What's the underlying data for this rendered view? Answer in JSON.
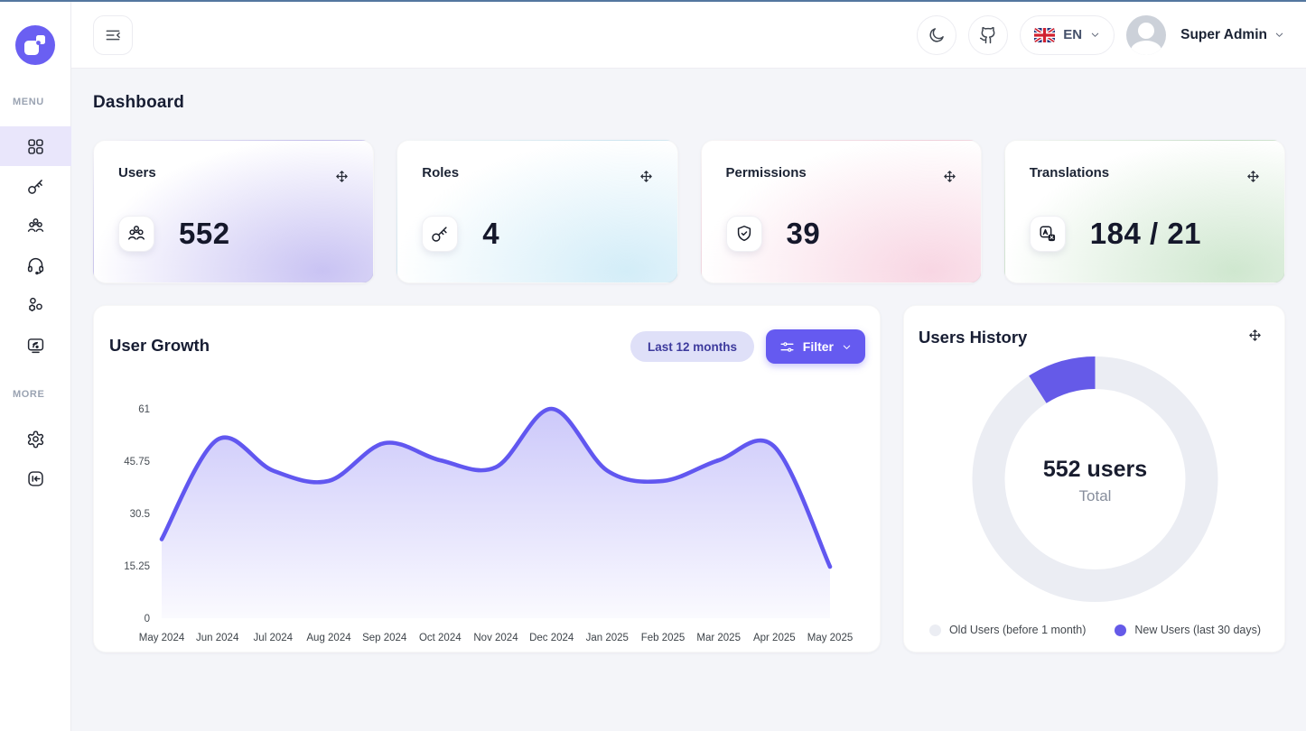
{
  "header": {
    "user_name": "Super Admin",
    "language": "EN"
  },
  "sidebar": {
    "menu_label": "MENU",
    "more_label": "MORE",
    "items": [
      {
        "icon": "grid-dashboard-icon",
        "active": true
      },
      {
        "icon": "key-icon",
        "active": false
      },
      {
        "icon": "users-group-icon",
        "active": false
      },
      {
        "icon": "headset-icon",
        "active": false
      },
      {
        "icon": "shapes-icon",
        "active": false
      },
      {
        "icon": "screen-broadcast-icon",
        "active": false
      }
    ],
    "more_items": [
      {
        "icon": "gear-icon"
      },
      {
        "icon": "logout-icon"
      }
    ]
  },
  "page": {
    "title": "Dashboard"
  },
  "stat_cards": [
    {
      "label": "Users",
      "value": "552",
      "icon": "users-group-icon",
      "tint": "#c9c3f3"
    },
    {
      "label": "Roles",
      "value": "4",
      "icon": "key-icon",
      "tint": "#d3edf8"
    },
    {
      "label": "Permissions",
      "value": "39",
      "icon": "shield-check-icon",
      "tint": "#f8d6e3"
    },
    {
      "label": "Translations",
      "value": "184 / 21",
      "icon": "translate-icon",
      "tint": "#cfe7cf"
    }
  ],
  "user_growth": {
    "title": "User Growth",
    "range_label": "Last 12 months",
    "filter_label": "Filter"
  },
  "users_history": {
    "title": "Users History",
    "center_value": "552 users",
    "center_label": "Total",
    "legend": [
      {
        "label": "Old Users (before 1 month)",
        "color": "#ebedf3"
      },
      {
        "label": "New Users (last 30 days)",
        "color": "#655ae8"
      }
    ]
  },
  "chart_data": [
    {
      "type": "area",
      "title": "User Growth",
      "x": [
        "May 2024",
        "Jun 2024",
        "Jul 2024",
        "Aug 2024",
        "Sep 2024",
        "Oct 2024",
        "Nov 2024",
        "Dec 2024",
        "Jan 2025",
        "Feb 2025",
        "Mar 2025",
        "Apr 2025",
        "May 2025"
      ],
      "series": [
        {
          "name": "Users",
          "values": [
            23,
            52,
            43,
            40,
            51,
            46,
            44,
            61,
            43,
            40,
            46,
            50,
            15
          ]
        }
      ],
      "yticks": [
        0,
        15.25,
        30.5,
        45.75,
        61
      ],
      "ylim": [
        0,
        61
      ],
      "xlabel": "",
      "ylabel": "",
      "grid": false,
      "line_color": "#6157f0",
      "fill_color": "#655af0"
    },
    {
      "type": "pie",
      "title": "Users History",
      "labels": [
        "Old Users (before 1 month)",
        "New Users (last 30 days)"
      ],
      "values": [
        502,
        50
      ],
      "total": 552,
      "center_text": "552 users",
      "center_sub": "Total",
      "colors": [
        "#ebedf3",
        "#655ae8"
      ],
      "legend_position": "bottom"
    }
  ],
  "colors": {
    "accent": "#655af0",
    "top_strip": "#54779f",
    "page_bg": "#f4f5f9",
    "active_item_bg": "#e9e6fb",
    "range_pill_bg": "#dfe0f8",
    "range_pill_text": "#3d3a9d"
  }
}
